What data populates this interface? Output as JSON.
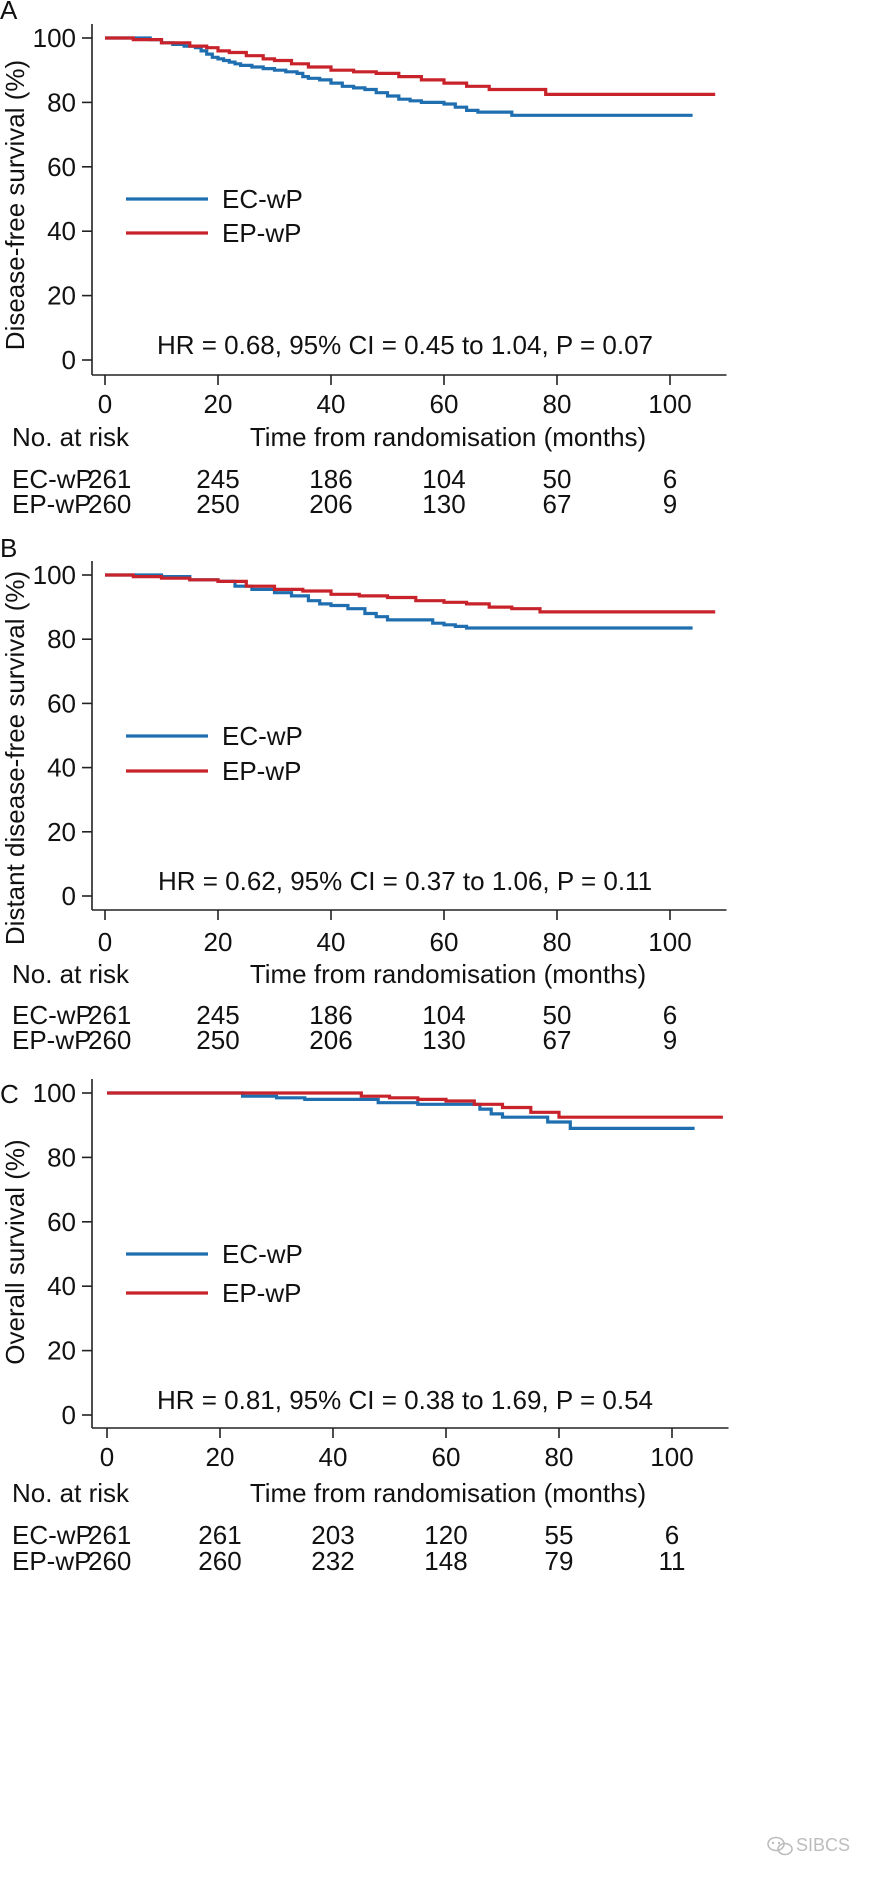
{
  "chart_data": [
    {
      "type": "line",
      "panel": "A",
      "ylabel": "Disease-free survival (%)",
      "xlabel": "Time from randomisation (months)",
      "xlim": [
        0,
        110
      ],
      "ylim": [
        0,
        100
      ],
      "xticks": [
        0,
        20,
        40,
        60,
        80,
        100
      ],
      "yticks": [
        0,
        20,
        40,
        60,
        80,
        100
      ],
      "legend": "left-middle",
      "annotation": "HR = 0.68, 95% CI = 0.45 to 1.04, P = 0.07",
      "series": [
        {
          "name": "EC-wP",
          "color": "#1f6fb0",
          "x": [
            0,
            8,
            10,
            12,
            14,
            16,
            17,
            18,
            19,
            20,
            21,
            22,
            23,
            24,
            26,
            28,
            30,
            32,
            34,
            35,
            36,
            38,
            40,
            42,
            44,
            46,
            48,
            50,
            52,
            54,
            56,
            58,
            60,
            62,
            64,
            66,
            68,
            70,
            72,
            74,
            76,
            80,
            90,
            104
          ],
          "y": [
            100,
            99.5,
            98.5,
            98,
            97.5,
            97,
            96,
            95,
            94,
            93.5,
            93,
            92.5,
            92,
            91.5,
            91,
            90.5,
            90,
            89.5,
            89,
            88,
            87.5,
            87,
            86,
            85,
            84.5,
            84,
            83,
            82,
            81,
            80.5,
            80,
            80,
            79.5,
            78.5,
            77.5,
            77,
            77,
            77,
            76,
            76,
            76,
            76,
            76,
            76
          ]
        },
        {
          "name": "EP-wP",
          "color": "#c8232b",
          "x": [
            0,
            5,
            10,
            15,
            18,
            20,
            22,
            25,
            28,
            30,
            33,
            36,
            40,
            44,
            48,
            52,
            56,
            60,
            64,
            68,
            72,
            78,
            90,
            100,
            108
          ],
          "y": [
            100,
            99.5,
            98.5,
            97.5,
            97,
            96,
            95.5,
            94.5,
            93.5,
            93,
            92,
            91,
            90,
            89.5,
            89,
            88,
            87,
            86,
            85,
            84,
            84,
            82.5,
            82.5,
            82.5,
            82.5
          ]
        }
      ],
      "risk_table": {
        "header": "No. at risk",
        "times": [
          0,
          20,
          40,
          60,
          80,
          100
        ],
        "rows": [
          {
            "label": "EC-wP",
            "values": [
              "261",
              "245",
              "186",
              "104",
              "50",
              "6"
            ]
          },
          {
            "label": "EP-wP",
            "values": [
              "260",
              "250",
              "206",
              "130",
              "67",
              "9"
            ]
          }
        ]
      }
    },
    {
      "type": "line",
      "panel": "B",
      "ylabel": "Distant disease-free survival (%)",
      "xlabel": "Time from randomisation (months)",
      "xlim": [
        0,
        110
      ],
      "ylim": [
        0,
        100
      ],
      "xticks": [
        0,
        20,
        40,
        60,
        80,
        100
      ],
      "yticks": [
        0,
        20,
        40,
        60,
        80,
        100
      ],
      "legend": "left-middle",
      "annotation": "HR = 0.62, 95% CI = 0.37 to 1.06, P = 0.11",
      "series": [
        {
          "name": "EC-wP",
          "color": "#1f6fb0",
          "x": [
            0,
            10,
            15,
            20,
            23,
            26,
            30,
            33,
            36,
            38,
            40,
            43,
            46,
            48,
            50,
            55,
            58,
            60,
            62,
            64,
            70,
            80,
            90,
            104
          ],
          "y": [
            100,
            99.5,
            98.5,
            98,
            96.5,
            95.5,
            94.5,
            93.5,
            92,
            91,
            90.5,
            89.5,
            88,
            87,
            86,
            86,
            85,
            84.5,
            84,
            83.5,
            83.5,
            83.5,
            83.5,
            83.5
          ]
        },
        {
          "name": "EP-wP",
          "color": "#c8232b",
          "x": [
            0,
            5,
            10,
            15,
            20,
            25,
            30,
            35,
            40,
            45,
            50,
            55,
            60,
            64,
            68,
            72,
            77,
            90,
            100,
            108
          ],
          "y": [
            100,
            99.5,
            99,
            98.5,
            98,
            96.5,
            95.5,
            95,
            94,
            93.5,
            93,
            92,
            91.5,
            91,
            90,
            89.5,
            88.5,
            88.5,
            88.5,
            88.5
          ]
        }
      ],
      "risk_table": {
        "header": "No. at risk",
        "times": [
          0,
          20,
          40,
          60,
          80,
          100
        ],
        "rows": [
          {
            "label": "EC-wP",
            "values": [
              "261",
              "245",
              "186",
              "104",
              "50",
              "6"
            ]
          },
          {
            "label": "EP-wP",
            "values": [
              "260",
              "250",
              "206",
              "130",
              "67",
              "9"
            ]
          }
        ]
      }
    },
    {
      "type": "line",
      "panel": "C",
      "ylabel": "Overall survival (%)",
      "xlabel": "Time from randomisation (months)",
      "xlim": [
        0,
        110
      ],
      "ylim": [
        0,
        100
      ],
      "xticks": [
        0,
        20,
        40,
        60,
        80,
        100
      ],
      "yticks": [
        0,
        20,
        40,
        60,
        80,
        100
      ],
      "legend": "left-middle",
      "annotation": "HR = 0.81, 95% CI = 0.38 to 1.69, P = 0.54",
      "series": [
        {
          "name": "EC-wP",
          "color": "#1f6fb0",
          "x": [
            0,
            20,
            24,
            30,
            35,
            45,
            48,
            55,
            62,
            66,
            68,
            70,
            75,
            78,
            82,
            90,
            104
          ],
          "y": [
            100,
            100,
            99,
            98.5,
            98,
            98,
            97,
            96.5,
            96.5,
            95,
            93.5,
            92.5,
            92.5,
            91,
            89,
            89,
            89
          ]
        },
        {
          "name": "EP-wP",
          "color": "#c8232b",
          "x": [
            0,
            20,
            30,
            40,
            45,
            50,
            55,
            60,
            65,
            70,
            75,
            80,
            90,
            100,
            109
          ],
          "y": [
            100,
            100,
            100,
            100,
            99,
            98.5,
            98,
            97.5,
            96.5,
            95.5,
            94,
            92.5,
            92.5,
            92.5,
            92.5
          ]
        }
      ],
      "risk_table": {
        "header": "No. at risk",
        "times": [
          0,
          20,
          40,
          60,
          80,
          100
        ],
        "rows": [
          {
            "label": "EC-wP",
            "values": [
              "261",
              "261",
              "203",
              "120",
              "55",
              "6"
            ]
          },
          {
            "label": "EP-wP",
            "values": [
              "260",
              "260",
              "232",
              "148",
              "79",
              "11"
            ]
          }
        ]
      }
    }
  ],
  "watermark": "SIBCS"
}
